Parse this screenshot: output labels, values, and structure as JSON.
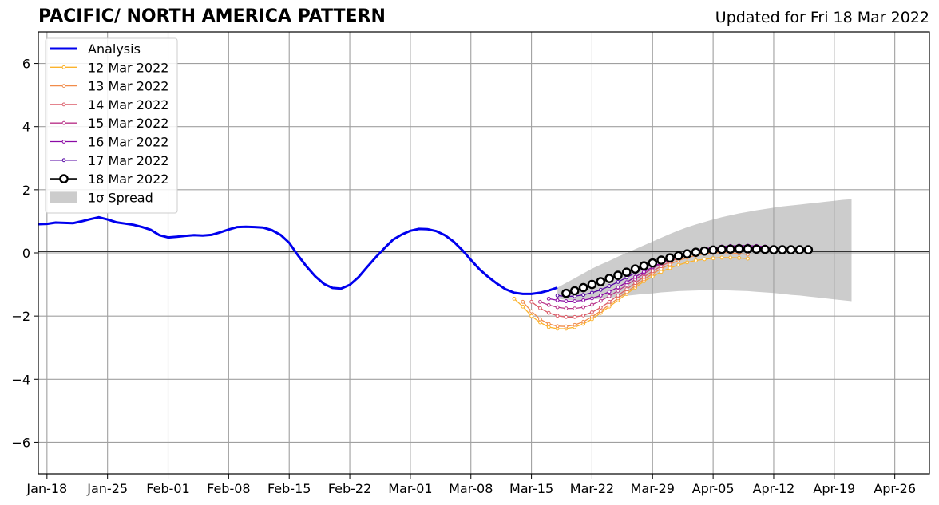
{
  "header": {
    "title": "PACIFIC/ NORTH AMERICA PATTERN",
    "updated": "Updated for Fri 18 Mar 2022"
  },
  "chart_data": {
    "type": "line",
    "title": "PACIFIC/ NORTH AMERICA PATTERN",
    "subtitle": "Updated for Fri 18 Mar 2022",
    "xlabel": "",
    "ylabel": "",
    "x_axis": {
      "type": "date",
      "range": [
        "2022-01-17",
        "2022-04-30"
      ],
      "ticks": [
        {
          "date": "2022-01-18",
          "label": "Jan-18"
        },
        {
          "date": "2022-01-25",
          "label": "Jan-25"
        },
        {
          "date": "2022-02-01",
          "label": "Feb-01"
        },
        {
          "date": "2022-02-08",
          "label": "Feb-08"
        },
        {
          "date": "2022-02-15",
          "label": "Feb-15"
        },
        {
          "date": "2022-02-22",
          "label": "Feb-22"
        },
        {
          "date": "2022-03-01",
          "label": "Mar-01"
        },
        {
          "date": "2022-03-08",
          "label": "Mar-08"
        },
        {
          "date": "2022-03-15",
          "label": "Mar-15"
        },
        {
          "date": "2022-03-22",
          "label": "Mar-22"
        },
        {
          "date": "2022-03-29",
          "label": "Mar-29"
        },
        {
          "date": "2022-04-05",
          "label": "Apr-05"
        },
        {
          "date": "2022-04-12",
          "label": "Apr-12"
        },
        {
          "date": "2022-04-19",
          "label": "Apr-19"
        },
        {
          "date": "2022-04-26",
          "label": "Apr-26"
        }
      ]
    },
    "y_axis": {
      "range": [
        -7,
        7
      ],
      "ticks": [
        {
          "value": 6,
          "label": "6"
        },
        {
          "value": 4,
          "label": "4"
        },
        {
          "value": 2,
          "label": "2"
        },
        {
          "value": 0,
          "label": "0"
        },
        {
          "value": -2,
          "label": "−2"
        },
        {
          "value": -4,
          "label": "−4"
        },
        {
          "value": -6,
          "label": "−6"
        }
      ]
    },
    "grid": true,
    "zero_line": true,
    "legend_position": "top-left",
    "legend": [
      {
        "label": "Analysis",
        "style": "thick-line",
        "color": "#0000ee"
      },
      {
        "label": "12 Mar 2022",
        "style": "line-dot",
        "color": "#fbb32c"
      },
      {
        "label": "13 Mar 2022",
        "style": "line-dot",
        "color": "#f18c4a"
      },
      {
        "label": "14 Mar 2022",
        "style": "line-dot",
        "color": "#db5c68"
      },
      {
        "label": "15 Mar 2022",
        "style": "line-dot",
        "color": "#b93389"
      },
      {
        "label": "16 Mar 2022",
        "style": "line-dot",
        "color": "#8b0aa5"
      },
      {
        "label": "17 Mar 2022",
        "style": "line-dot",
        "color": "#5302a3"
      },
      {
        "label": "18 Mar 2022",
        "style": "line-circle",
        "color": "#000000"
      },
      {
        "label": "1σ Spread",
        "style": "patch",
        "color": "#cccccc"
      }
    ],
    "analysis": {
      "name": "Analysis",
      "color": "#0000ee",
      "start": "2022-01-17",
      "values": [
        0.91,
        0.92,
        0.96,
        0.95,
        0.94,
        1.0,
        1.07,
        1.13,
        1.06,
        0.97,
        0.93,
        0.89,
        0.82,
        0.73,
        0.56,
        0.49,
        0.51,
        0.54,
        0.56,
        0.55,
        0.57,
        0.65,
        0.74,
        0.82,
        0.83,
        0.82,
        0.8,
        0.72,
        0.57,
        0.32,
        -0.07,
        -0.43,
        -0.74,
        -0.98,
        -1.11,
        -1.13,
        -1.01,
        -0.77,
        -0.45,
        -0.14,
        0.15,
        0.42,
        0.58,
        0.7,
        0.76,
        0.75,
        0.69,
        0.56,
        0.36,
        0.09,
        -0.22,
        -0.52,
        -0.76,
        -0.97,
        -1.15,
        -1.26,
        -1.3,
        -1.3,
        -1.26,
        -1.19,
        -1.1
      ]
    },
    "forecasts": [
      {
        "name": "12 Mar 2022",
        "color": "#fbb32c",
        "start": "2022-03-13",
        "values": [
          -1.45,
          -1.7,
          -2.0,
          -2.2,
          -2.35,
          -2.4,
          -2.4,
          -2.35,
          -2.25,
          -2.1,
          -1.9,
          -1.7,
          -1.5,
          -1.3,
          -1.1,
          -0.9,
          -0.75,
          -0.6,
          -0.48,
          -0.38,
          -0.3,
          -0.24,
          -0.2,
          -0.17,
          -0.15,
          -0.15,
          -0.16,
          -0.18
        ]
      },
      {
        "name": "13 Mar 2022",
        "color": "#f18c4a",
        "start": "2022-03-14",
        "values": [
          -1.55,
          -1.85,
          -2.1,
          -2.25,
          -2.32,
          -2.33,
          -2.28,
          -2.18,
          -2.02,
          -1.84,
          -1.64,
          -1.44,
          -1.24,
          -1.04,
          -0.84,
          -0.66,
          -0.5,
          -0.36,
          -0.24,
          -0.15,
          -0.08,
          -0.03,
          0.0,
          0.01,
          0.0,
          -0.02,
          -0.05
        ]
      },
      {
        "name": "14 Mar 2022",
        "color": "#db5c68",
        "start": "2022-03-15",
        "values": [
          -1.55,
          -1.75,
          -1.9,
          -1.99,
          -2.03,
          -2.03,
          -1.98,
          -1.88,
          -1.73,
          -1.55,
          -1.35,
          -1.15,
          -0.95,
          -0.76,
          -0.58,
          -0.42,
          -0.28,
          -0.16,
          -0.06,
          0.02,
          0.08,
          0.12,
          0.14,
          0.15,
          0.14,
          0.12,
          0.1
        ]
      },
      {
        "name": "15 Mar 2022",
        "color": "#b93389",
        "start": "2022-03-16",
        "values": [
          -1.55,
          -1.65,
          -1.72,
          -1.76,
          -1.76,
          -1.72,
          -1.64,
          -1.52,
          -1.37,
          -1.2,
          -1.02,
          -0.84,
          -0.66,
          -0.49,
          -0.34,
          -0.21,
          -0.1,
          -0.01,
          0.06,
          0.12,
          0.16,
          0.19,
          0.2,
          0.2,
          0.19,
          0.17,
          0.15
        ]
      },
      {
        "name": "16 Mar 2022",
        "color": "#8b0aa5",
        "start": "2022-03-17",
        "values": [
          -1.45,
          -1.5,
          -1.53,
          -1.53,
          -1.5,
          -1.44,
          -1.35,
          -1.23,
          -1.09,
          -0.93,
          -0.76,
          -0.6,
          -0.45,
          -0.31,
          -0.19,
          -0.09,
          0.0,
          0.07,
          0.13,
          0.17,
          0.2,
          0.22,
          0.23,
          0.23,
          0.22,
          0.2,
          0.18
        ]
      },
      {
        "name": "17 Mar 2022",
        "color": "#5302a3",
        "start": "2022-03-18",
        "values": [
          -1.35,
          -1.38,
          -1.37,
          -1.33,
          -1.26,
          -1.17,
          -1.05,
          -0.92,
          -0.78,
          -0.63,
          -0.49,
          -0.36,
          -0.24,
          -0.14,
          -0.06,
          0.01,
          0.06,
          0.1,
          0.13,
          0.15,
          0.16,
          0.17,
          0.17,
          0.16,
          0.15,
          0.13,
          0.12
        ]
      },
      {
        "name": "18 Mar 2022",
        "color": "#000000",
        "start": "2022-03-19",
        "values": [
          -1.28,
          -1.2,
          -1.1,
          -1.0,
          -0.91,
          -0.81,
          -0.71,
          -0.61,
          -0.51,
          -0.41,
          -0.32,
          -0.23,
          -0.16,
          -0.09,
          -0.03,
          0.02,
          0.06,
          0.09,
          0.11,
          0.12,
          0.13,
          0.13,
          0.12,
          0.11,
          0.1,
          0.1,
          0.1,
          0.1,
          0.1
        ]
      }
    ],
    "spread": {
      "name": "1σ Spread",
      "color": "#cccccc",
      "start": "2022-03-18",
      "upper": [
        -1.1,
        -0.95,
        -0.8,
        -0.65,
        -0.5,
        -0.37,
        -0.25,
        -0.12,
        0.0,
        0.12,
        0.24,
        0.36,
        0.48,
        0.6,
        0.71,
        0.81,
        0.9,
        0.98,
        1.06,
        1.13,
        1.19,
        1.25,
        1.3,
        1.35,
        1.39,
        1.43,
        1.47,
        1.5,
        1.53,
        1.56,
        1.59,
        1.62,
        1.65,
        1.68,
        1.7
      ],
      "lower": [
        -1.45,
        -1.48,
        -1.5,
        -1.49,
        -1.47,
        -1.45,
        -1.42,
        -1.39,
        -1.36,
        -1.33,
        -1.3,
        -1.28,
        -1.25,
        -1.23,
        -1.21,
        -1.2,
        -1.19,
        -1.18,
        -1.18,
        -1.18,
        -1.19,
        -1.2,
        -1.21,
        -1.23,
        -1.25,
        -1.27,
        -1.3,
        -1.33,
        -1.35,
        -1.38,
        -1.41,
        -1.44,
        -1.47,
        -1.5,
        -1.53
      ]
    }
  }
}
